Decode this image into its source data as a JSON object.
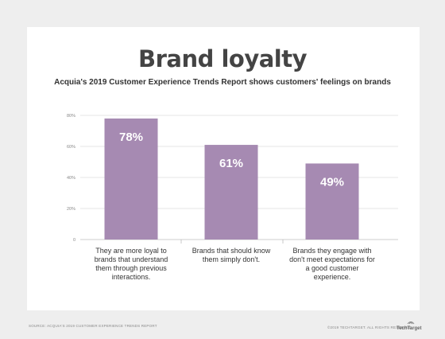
{
  "header": {
    "title": "Brand loyalty",
    "subtitle": "Acquia's 2019 Customer Experience Trends Report shows customers' feelings on brands"
  },
  "footer": {
    "source": "SOURCE: ACQUIA'S 2019 CUSTOMER EXPERIENCE TRENDS REPORT",
    "copyright": "©2019 TECHTARGET. ALL RIGHTS RESERVED",
    "brand": "TechTarget"
  },
  "colors": {
    "bar": "#a68ab2",
    "grid": "#dddddd",
    "background": "#eeeeee",
    "card": "#ffffff"
  },
  "chart_data": {
    "type": "bar",
    "categories": [
      "They are more loyal to brands that understand them through previous interactions.",
      "Brands that should know them simply don't.",
      "Brands they engage with don't meet expectations for a good customer experience."
    ],
    "values": [
      78,
      61,
      49
    ],
    "data_labels": [
      "78%",
      "61%",
      "49%"
    ],
    "y_ticks": [
      "80%",
      "60%",
      "40%",
      "20%",
      "0"
    ],
    "ylim": [
      0,
      80
    ],
    "grid": true,
    "title": "Brand loyalty",
    "xlabel": "",
    "ylabel": ""
  }
}
